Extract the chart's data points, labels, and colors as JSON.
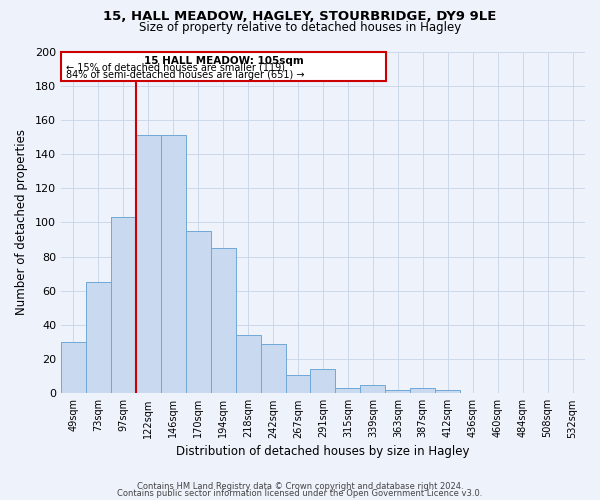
{
  "title1": "15, HALL MEADOW, HAGLEY, STOURBRIDGE, DY9 9LE",
  "title2": "Size of property relative to detached houses in Hagley",
  "xlabel": "Distribution of detached houses by size in Hagley",
  "ylabel": "Number of detached properties",
  "categories": [
    "49sqm",
    "73sqm",
    "97sqm",
    "122sqm",
    "146sqm",
    "170sqm",
    "194sqm",
    "218sqm",
    "242sqm",
    "267sqm",
    "291sqm",
    "315sqm",
    "339sqm",
    "363sqm",
    "387sqm",
    "412sqm",
    "436sqm",
    "460sqm",
    "484sqm",
    "508sqm",
    "532sqm"
  ],
  "values": [
    30,
    65,
    103,
    151,
    151,
    95,
    85,
    34,
    29,
    11,
    14,
    3,
    5,
    2,
    3,
    2,
    0,
    0,
    0,
    0,
    0
  ],
  "bar_color": "#c9d9f0",
  "bar_edge_color": "#6fa8d6",
  "vline_color": "#cc0000",
  "ylim": [
    0,
    200
  ],
  "yticks": [
    0,
    20,
    40,
    60,
    80,
    100,
    120,
    140,
    160,
    180,
    200
  ],
  "annotation_title": "15 HALL MEADOW: 105sqm",
  "annotation_line1": "← 15% of detached houses are smaller (119)",
  "annotation_line2": "84% of semi-detached houses are larger (651) →",
  "footer1": "Contains HM Land Registry data © Crown copyright and database right 2024.",
  "footer2": "Contains public sector information licensed under the Open Government Licence v3.0.",
  "bg_color": "#eef2fb",
  "grid_color": "#c8d4e8"
}
